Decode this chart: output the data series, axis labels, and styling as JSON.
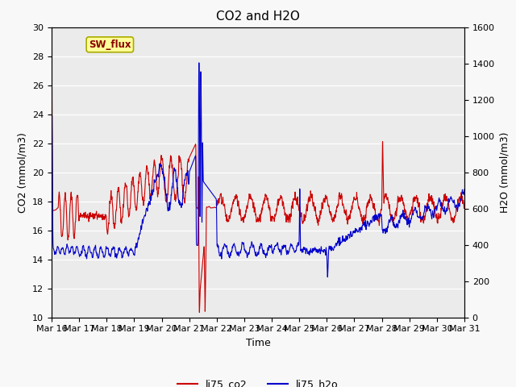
{
  "title": "CO2 and H2O",
  "xlabel": "Time",
  "ylabel_left": "CO2 (mmol/m3)",
  "ylabel_right": "H2O (mmol/m3)",
  "ylim_left": [
    10,
    30
  ],
  "ylim_right": [
    0,
    1600
  ],
  "yticks_left": [
    10,
    12,
    14,
    16,
    18,
    20,
    22,
    24,
    26,
    28,
    30
  ],
  "yticks_right": [
    0,
    200,
    400,
    600,
    800,
    1000,
    1200,
    1400,
    1600
  ],
  "co2_color": "#cc0000",
  "h2o_color": "#0000cc",
  "legend_entries": [
    "li75_co2",
    "li75_h2o"
  ],
  "annotation_text": "SW_flux",
  "plot_bg_color": "#ebebeb",
  "fig_bg_color": "#f8f8f8",
  "linewidth": 0.8,
  "seed": 42
}
